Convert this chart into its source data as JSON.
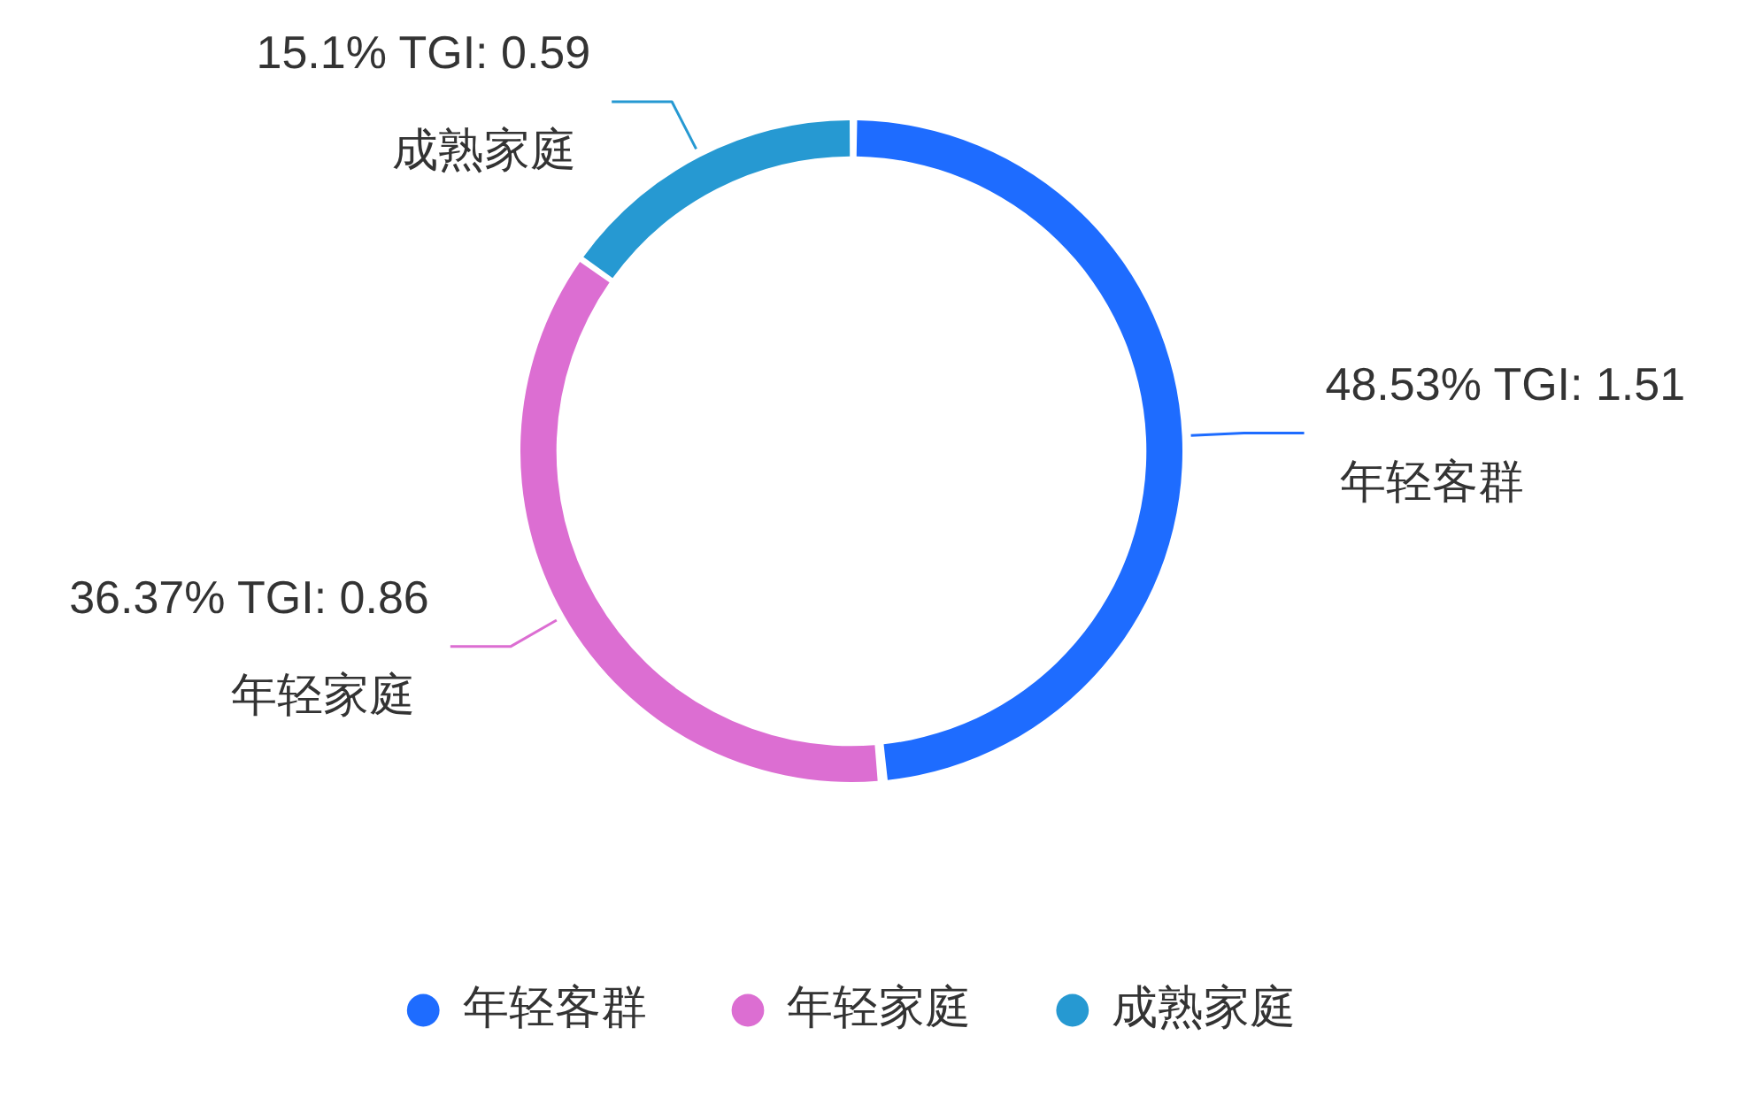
{
  "chart_data": {
    "type": "donut",
    "categories": [
      "年轻客群",
      "年轻家庭",
      "成熟家庭"
    ],
    "values": [
      48.53,
      36.37,
      15.1
    ],
    "colors": [
      "#1e6cff",
      "#dc6ed2",
      "#2699d2"
    ],
    "value_labels": [
      "48.53% TGI: 1.51",
      "36.37% TGI: 0.86",
      "15.1% TGI: 0.59"
    ],
    "legend": "bottom"
  }
}
